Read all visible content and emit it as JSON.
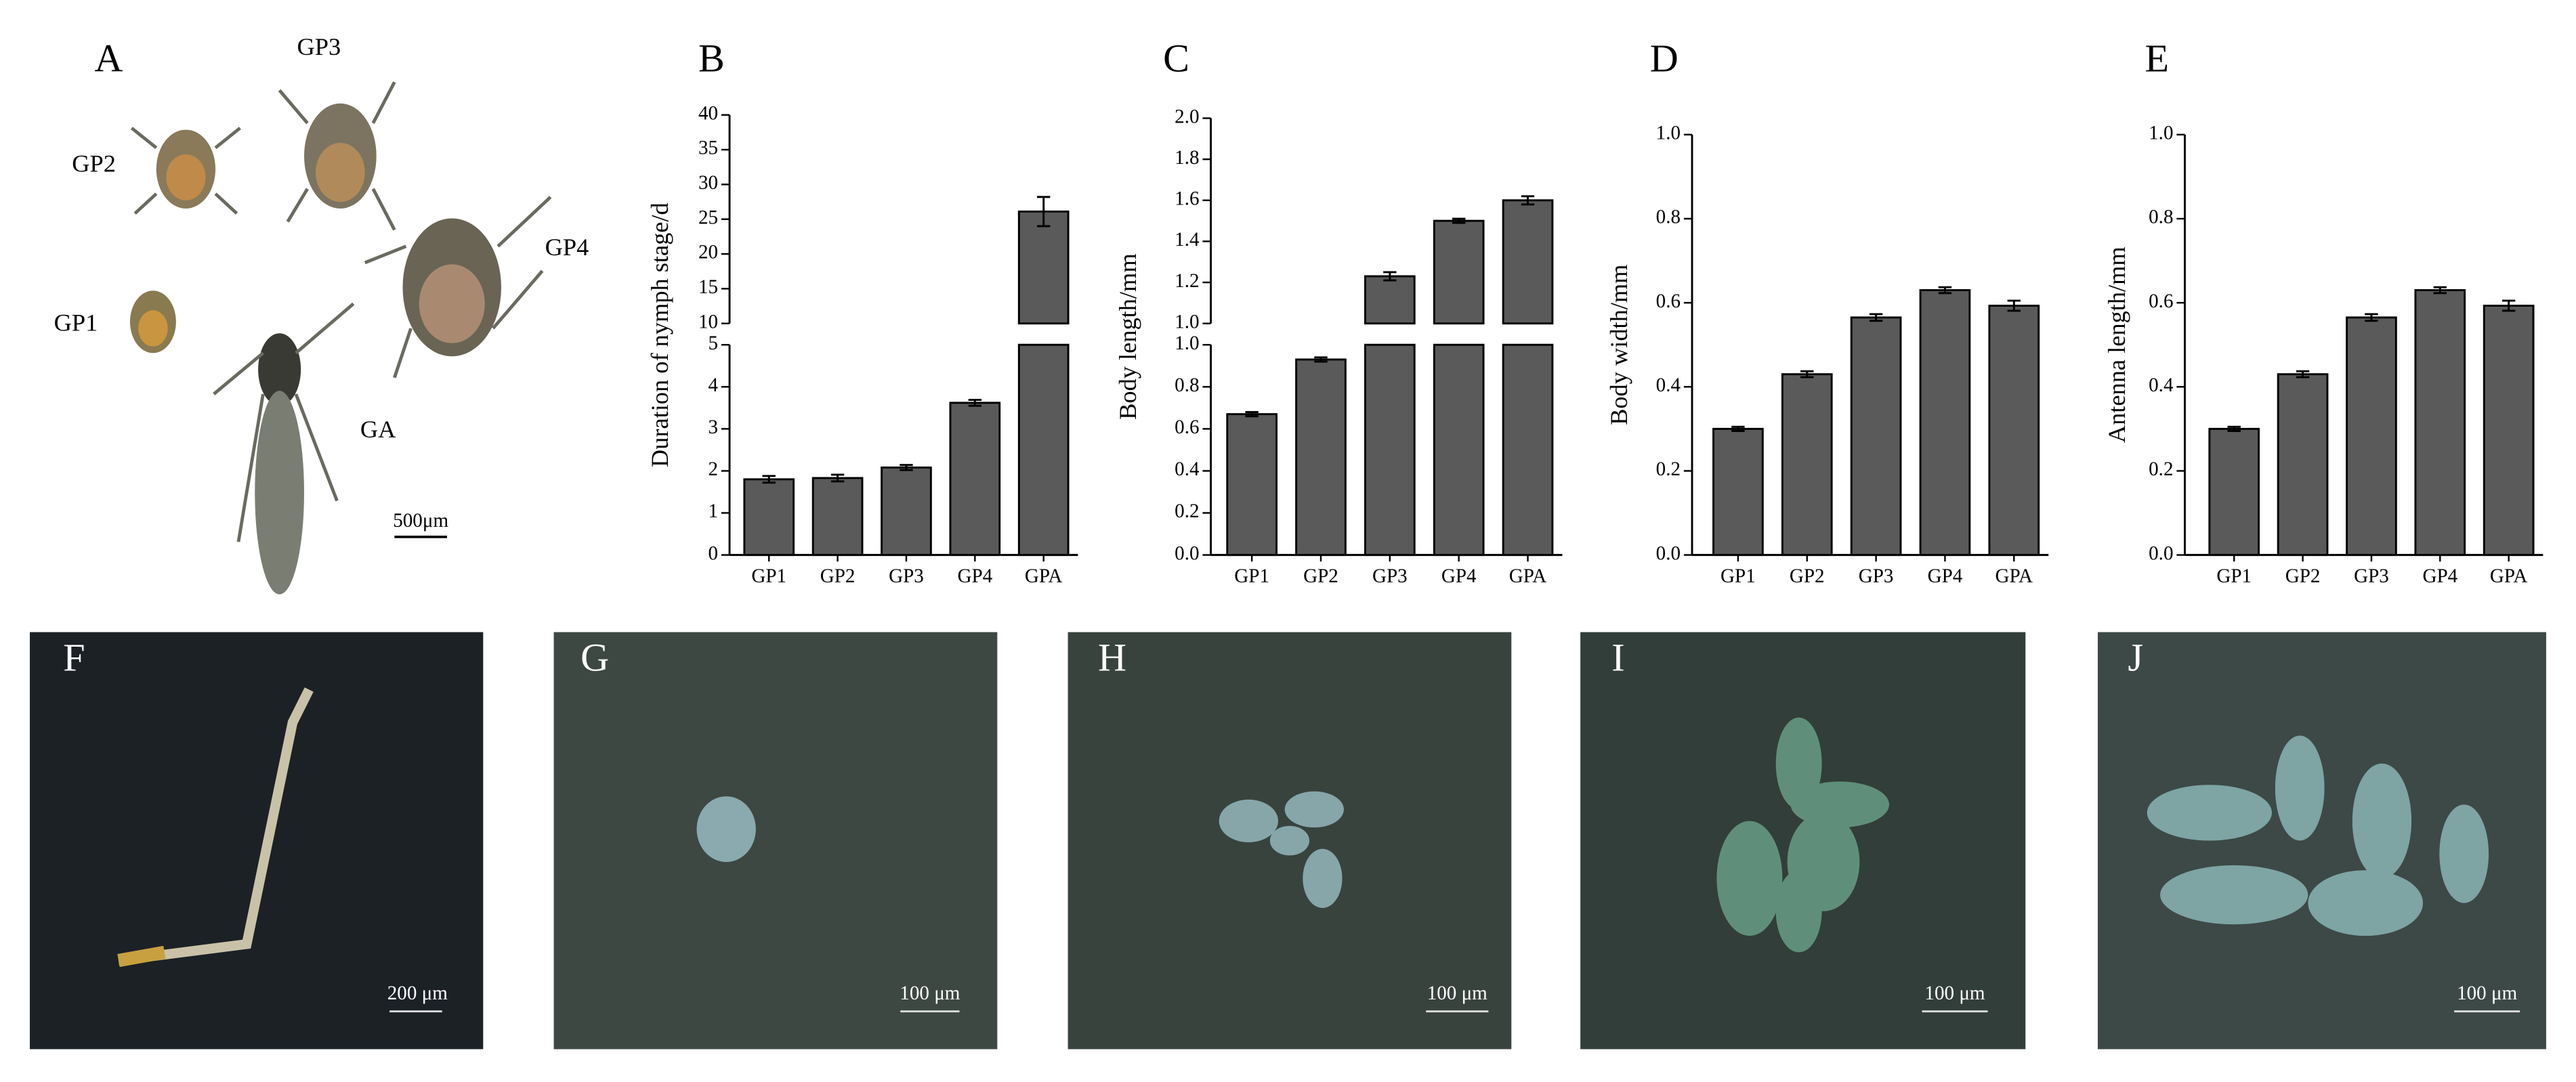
{
  "panel_a": {
    "label": "A",
    "stages": [
      "GP3",
      "GP2",
      "GP4",
      "GP1",
      "GA"
    ],
    "scale_bar": "500μm"
  },
  "chart_data": [
    {
      "type": "bar",
      "title": "B",
      "y_label": "Duration of nymph stage/d",
      "categories": [
        "GP1",
        "GP2",
        "GP3",
        "GP4",
        "GPA"
      ],
      "values": [
        1.8,
        1.83,
        2.08,
        3.62,
        26.1
      ],
      "errors": [
        0.08,
        0.08,
        0.06,
        0.07,
        2.1
      ],
      "color": "#5a5a5a",
      "segments": [
        {
          "ylim": [
            0,
            5
          ],
          "yticks": [
            0,
            1,
            2,
            3,
            4,
            5
          ]
        },
        {
          "ylim": [
            10,
            40
          ],
          "yticks": [
            10,
            15,
            20,
            25,
            30,
            35,
            40
          ]
        }
      ]
    },
    {
      "type": "bar",
      "title": "C",
      "y_label": "Body length/mm",
      "categories": [
        "GP1",
        "GP2",
        "GP3",
        "GP4",
        "GPA"
      ],
      "values": [
        0.67,
        0.93,
        1.23,
        1.5,
        1.6
      ],
      "errors": [
        0.01,
        0.01,
        0.02,
        0.01,
        0.02
      ],
      "color": "#5a5a5a",
      "segments": [
        {
          "ylim": [
            0,
            1
          ],
          "yticks": [
            {
              "value": 0,
              "label": "0.0"
            },
            0.2,
            0.4,
            0.6,
            0.8,
            {
              "value": 1,
              "label": "1.0"
            }
          ]
        },
        {
          "ylim": [
            1,
            2
          ],
          "yticks": [
            {
              "value": 1,
              "label": "1.0"
            },
            1.2,
            1.4,
            1.6,
            1.8,
            {
              "value": 2,
              "label": "2.0"
            }
          ]
        }
      ]
    },
    {
      "type": "bar",
      "title": "D",
      "y_label": "Body width/mm",
      "categories": [
        "GP1",
        "GP2",
        "GP3",
        "GP4",
        "GPA"
      ],
      "values": [
        0.3,
        0.43,
        0.565,
        0.63,
        0.593
      ],
      "errors": [
        0.005,
        0.007,
        0.008,
        0.007,
        0.012
      ],
      "color": "#5a5a5a",
      "segments": [
        {
          "ylim": [
            0,
            1
          ],
          "yticks": [
            {
              "value": 0,
              "label": "0.0"
            },
            0.2,
            0.4,
            0.6,
            0.8,
            {
              "value": 1,
              "label": "1.0"
            }
          ]
        }
      ]
    },
    {
      "type": "bar",
      "title": "E",
      "y_label": "Antenna length/mm",
      "categories": [
        "GP1",
        "GP2",
        "GP3",
        "GP4",
        "GPA"
      ],
      "values": [
        0.3,
        0.43,
        0.565,
        0.63,
        0.593
      ],
      "errors": [
        0.005,
        0.007,
        0.008,
        0.007,
        0.012
      ],
      "color": "#5a5a5a",
      "segments": [
        {
          "ylim": [
            0,
            1
          ],
          "yticks": [
            {
              "value": 0,
              "label": "0.0"
            },
            0.2,
            0.4,
            0.6,
            0.8,
            {
              "value": 1,
              "label": "1.0"
            }
          ]
        }
      ]
    }
  ],
  "photo_panels": [
    {
      "label": "F",
      "scale_bar": "200 μm"
    },
    {
      "label": "G",
      "scale_bar": "100 μm"
    },
    {
      "label": "H",
      "scale_bar": "100 μm"
    },
    {
      "label": "I",
      "scale_bar": "100 μm"
    },
    {
      "label": "J",
      "scale_bar": "100 μm"
    }
  ]
}
